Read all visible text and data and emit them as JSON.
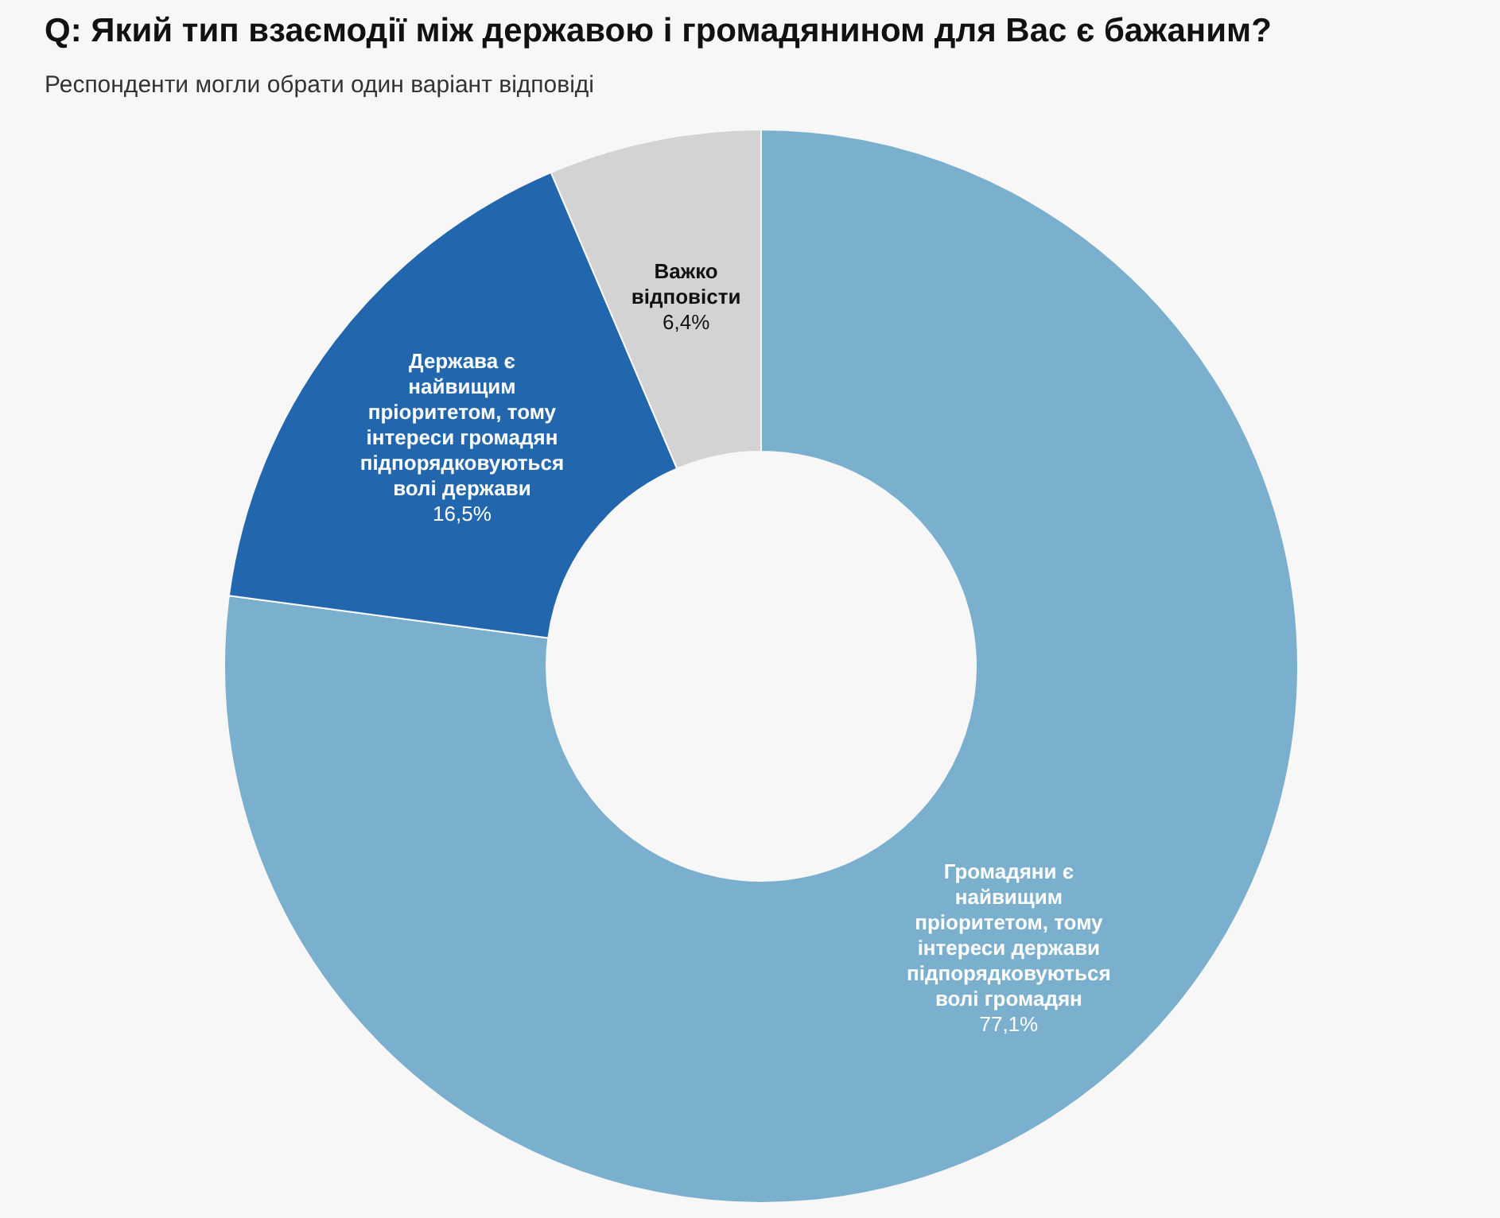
{
  "chart_data": {
    "type": "donut",
    "title": "Q: Який тип взаємодії між державою і громадянином для Вас є бажаним?",
    "subtitle": "Респонденти могли обрати один варіант відповіді",
    "categories": [
      "Громадяни є найвищим пріоритетом, тому інтереси держави підпорядковуються волі громадян",
      "Держава є найвищим пріоритетом, тому інтереси громадян підпорядковуються волі держави",
      "Важко відповісти"
    ],
    "values": [
      77.1,
      16.5,
      6.4
    ],
    "colors": [
      "#7aafce",
      "#2267ad",
      "#d3d3d3"
    ],
    "value_labels": [
      "77,1%",
      "16,5%",
      "6,4%"
    ],
    "legend": false
  }
}
